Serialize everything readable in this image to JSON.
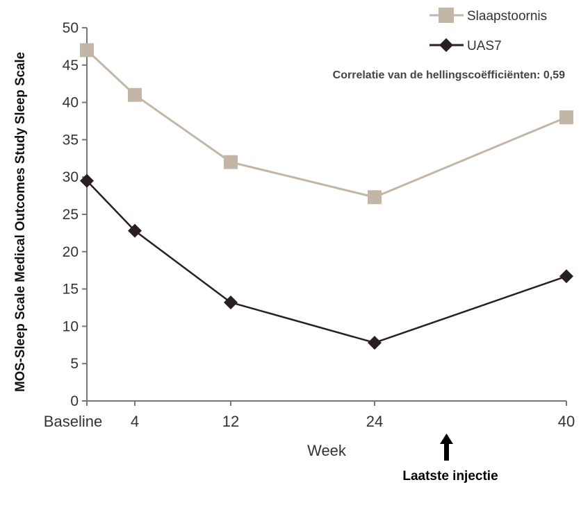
{
  "chart_data": {
    "type": "line",
    "categories": [
      "Baseline",
      "4",
      "12",
      "24",
      "40"
    ],
    "x_positions": [
      0,
      4,
      12,
      24,
      40
    ],
    "xlabel": "Week",
    "ylabel": "MOS-Sleep Scale Medical Outcomes Study Sleep Scale",
    "ylim": [
      0,
      50
    ],
    "yticks": [
      0,
      5,
      10,
      15,
      20,
      25,
      30,
      35,
      40,
      45,
      50
    ],
    "grid": false,
    "legend_position": "top-right",
    "annotation": "Correlatie van de hellingscoëfficiënten: 0,59",
    "series": [
      {
        "name": "Slaapstoornis",
        "marker": "square",
        "color": "#c4b6a6",
        "values": [
          47,
          41,
          32,
          27.3,
          38
        ]
      },
      {
        "name": "UAS7",
        "marker": "diamond",
        "color": "#2a1f1f",
        "values": [
          29.5,
          22.8,
          13.2,
          7.8,
          16.7
        ]
      }
    ],
    "arrow_label": "Laatste injectie",
    "arrow_at_category": "24"
  }
}
